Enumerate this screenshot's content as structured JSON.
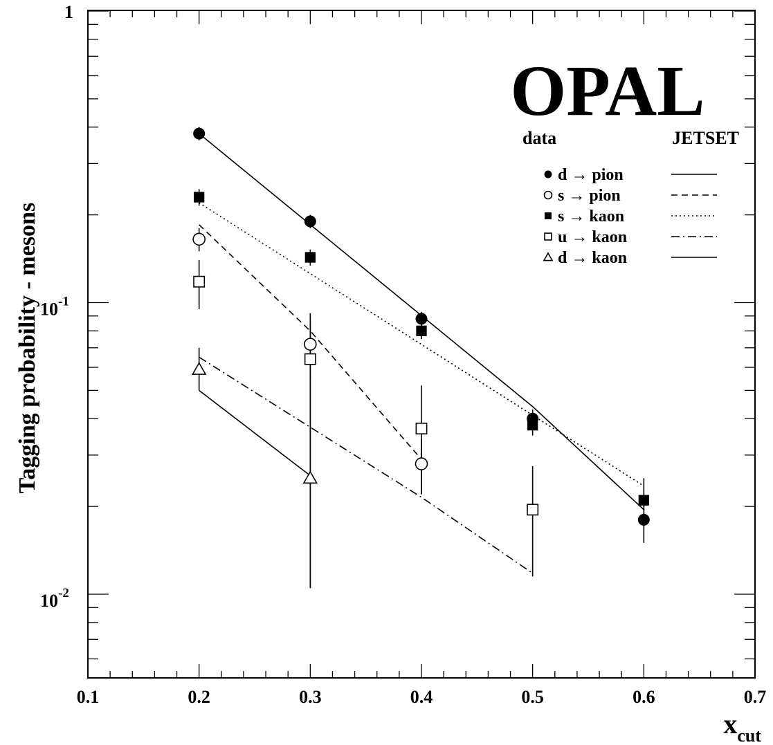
{
  "chart_data": {
    "type": "scatter",
    "ylabel": "Tagging probability - mesons",
    "xlabel": {
      "main": "x",
      "sub": "cut"
    },
    "xlim": [
      0.1,
      0.7
    ],
    "ylim": [
      0.005,
      1
    ],
    "yscale": "log",
    "x_ticks": [
      "0.1",
      "0.2",
      "0.3",
      "0.4",
      "0.5",
      "0.6",
      "0.7"
    ],
    "y_ticks": [
      {
        "value": 1,
        "base": "1",
        "exp": ""
      },
      {
        "value": 0.1,
        "base": "10",
        "exp": "-1"
      },
      {
        "value": 0.01,
        "base": "10",
        "exp": "-2"
      }
    ],
    "logo": "OPAL",
    "legend": {
      "placement": "top-right",
      "header_data": "data",
      "header_model": "JETSET"
    },
    "series": [
      {
        "name": "d → pion",
        "marker": "filled-circle",
        "line_style": "solid",
        "data": [
          {
            "x": 0.2,
            "y": 0.38,
            "lo": 0.36,
            "hi": 0.4
          },
          {
            "x": 0.3,
            "y": 0.19,
            "lo": 0.18,
            "hi": 0.2
          },
          {
            "x": 0.4,
            "y": 0.088,
            "lo": 0.083,
            "hi": 0.093
          },
          {
            "x": 0.5,
            "y": 0.04,
            "lo": 0.037,
            "hi": 0.043
          },
          {
            "x": 0.6,
            "y": 0.018,
            "lo": 0.015,
            "hi": 0.021
          }
        ],
        "model": {
          "x": [
            0.2,
            0.5,
            0.6
          ],
          "y": [
            0.38,
            0.044,
            0.0195
          ]
        }
      },
      {
        "name": "s → pion",
        "marker": "open-circle",
        "line_style": "dashed",
        "data": [
          {
            "x": 0.2,
            "y": 0.165,
            "lo": 0.15,
            "hi": 0.18
          },
          {
            "x": 0.3,
            "y": 0.072,
            "lo": 0.055,
            "hi": 0.088
          },
          {
            "x": 0.4,
            "y": 0.028,
            "lo": 0.022,
            "hi": 0.034
          }
        ],
        "model": {
          "x": [
            0.2,
            0.3,
            0.4
          ],
          "y": [
            0.185,
            0.08,
            0.029
          ]
        }
      },
      {
        "name": "s → kaon",
        "marker": "filled-square",
        "line_style": "dotted",
        "data": [
          {
            "x": 0.2,
            "y": 0.23,
            "lo": 0.215,
            "hi": 0.245
          },
          {
            "x": 0.3,
            "y": 0.143,
            "lo": 0.134,
            "hi": 0.152
          },
          {
            "x": 0.4,
            "y": 0.08,
            "lo": 0.075,
            "hi": 0.085
          },
          {
            "x": 0.5,
            "y": 0.038,
            "lo": 0.035,
            "hi": 0.041
          },
          {
            "x": 0.6,
            "y": 0.021,
            "lo": 0.017,
            "hi": 0.025
          }
        ],
        "model": {
          "x": [
            0.2,
            0.6
          ],
          "y": [
            0.22,
            0.0235
          ]
        }
      },
      {
        "name": "u → kaon",
        "marker": "open-square",
        "line_style": "dashdot",
        "data": [
          {
            "x": 0.2,
            "y": 0.118,
            "lo": 0.095,
            "hi": 0.14
          },
          {
            "x": 0.3,
            "y": 0.064,
            "lo": 0.0105,
            "hi": 0.092
          },
          {
            "x": 0.4,
            "y": 0.037,
            "lo": 0.022,
            "hi": 0.052
          },
          {
            "x": 0.5,
            "y": 0.0195,
            "lo": 0.0115,
            "hi": 0.0275
          }
        ],
        "model": {
          "x": [
            0.2,
            0.4,
            0.5
          ],
          "y": [
            0.065,
            0.0215,
            0.0118
          ]
        }
      },
      {
        "name": "d → kaon",
        "marker": "open-triangle",
        "line_style": "solid",
        "data": [
          {
            "x": 0.2,
            "y": 0.059,
            "lo": 0.05,
            "hi": 0.07
          },
          {
            "x": 0.3,
            "y": 0.025,
            "lo": 0.0105,
            "hi": 0.08
          }
        ],
        "model": {
          "x": [
            0.2,
            0.3
          ],
          "y": [
            0.05,
            0.0255
          ]
        }
      }
    ]
  }
}
